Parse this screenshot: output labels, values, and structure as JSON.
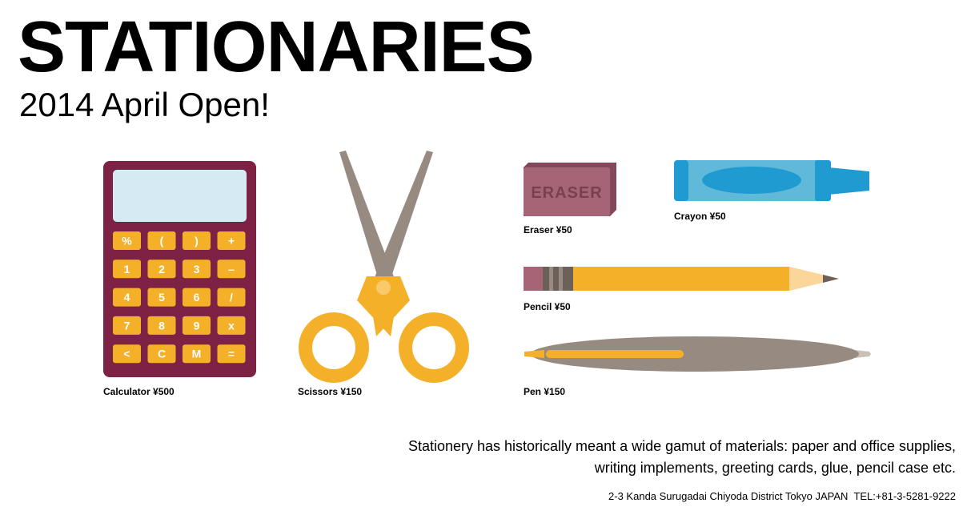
{
  "header": {
    "title": "STATIONARIES",
    "subtitle": "2014 April Open!"
  },
  "calculator": {
    "caption": "Calculator ¥500",
    "keys": [
      [
        "%",
        "(",
        ")",
        "+"
      ],
      [
        "1",
        "2",
        "3",
        "–"
      ],
      [
        "4",
        "5",
        "6",
        "/"
      ],
      [
        "7",
        "8",
        "9",
        "x"
      ],
      [
        "<",
        "C",
        "M",
        "="
      ]
    ]
  },
  "scissors": {
    "caption": "Scissors ¥150"
  },
  "eraser": {
    "caption": "Eraser ¥50",
    "label": "ERASER"
  },
  "crayon": {
    "caption": "Crayon ¥50"
  },
  "pencil": {
    "caption": "Pencil ¥50"
  },
  "pen": {
    "caption": "Pen ¥150"
  },
  "description": {
    "line1": "Stationery has historically meant a wide gamut of materials: paper and office supplies,",
    "line2": "writing implements, greeting cards, glue, pencil case etc."
  },
  "footer": {
    "address": "2-3 Kanda Surugadai Chiyoda District Tokyo JAPAN",
    "tel": "TEL:+81-3-5281-9222"
  },
  "colors": {
    "calculator_body": "#7d2244",
    "calculator_screen": "#d6eaf3",
    "key": "#f5b02a",
    "scissors_blade": "#978b81",
    "scissors_handle": "#f5b02a",
    "eraser": "#a56576",
    "crayon": "#61b9da",
    "pencil": "#f5b02a",
    "pen": "#978b81"
  }
}
